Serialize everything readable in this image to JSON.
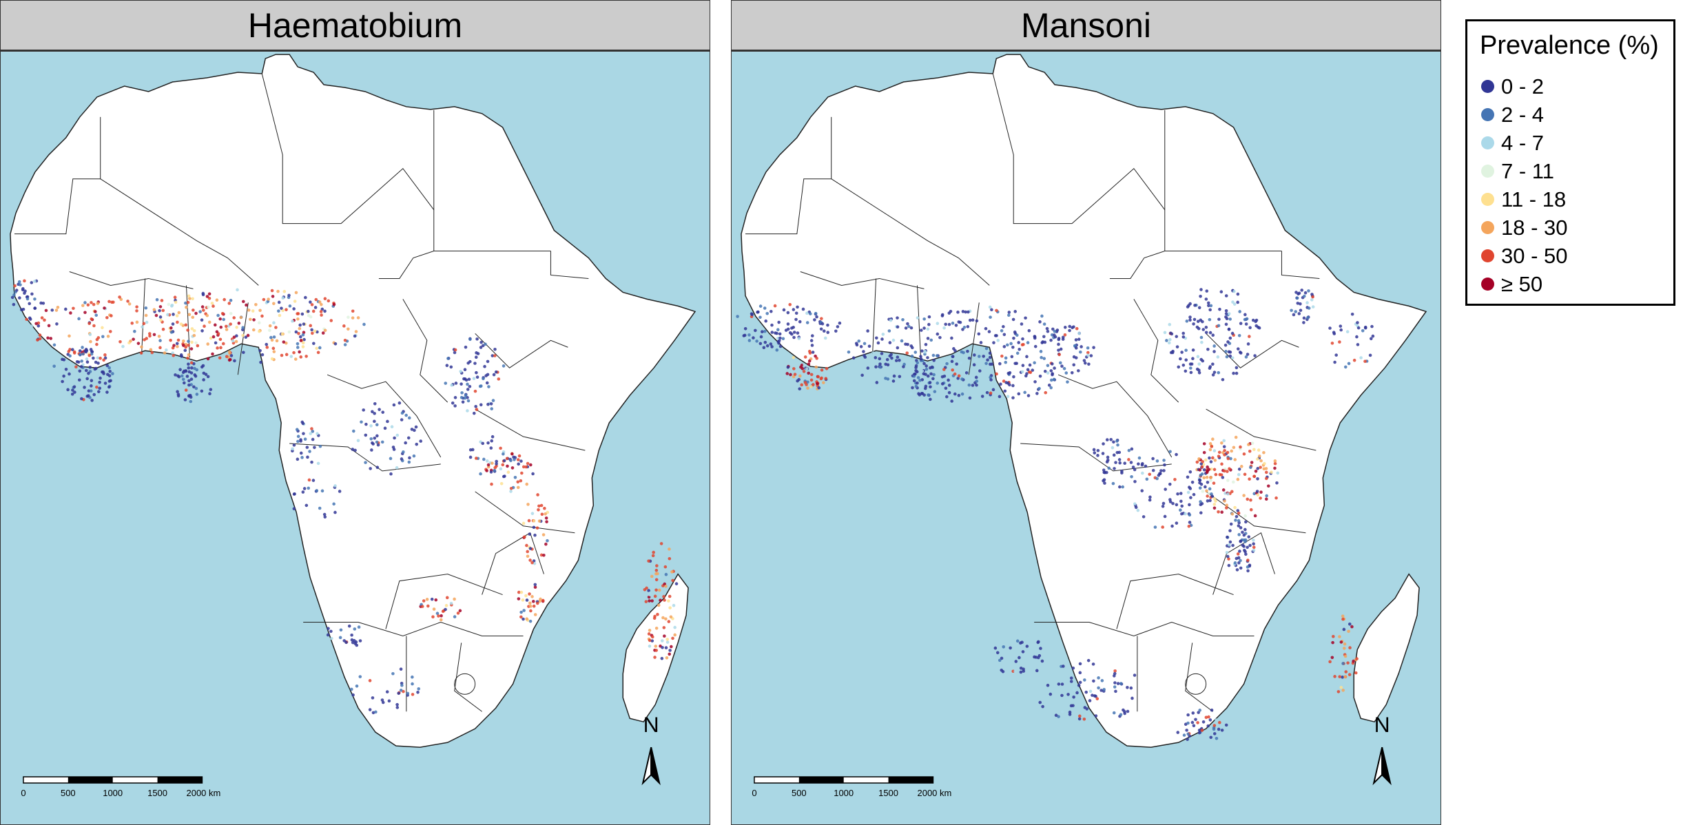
{
  "panels": [
    {
      "title": "Haematobium"
    },
    {
      "title": "Mansoni"
    }
  ],
  "legend": {
    "title": "Prevalence (%)",
    "items": [
      {
        "label": "0 - 2",
        "color": "#313695"
      },
      {
        "label": "2 - 4",
        "color": "#4575b4"
      },
      {
        "label": "4 - 7",
        "color": "#abd9e9"
      },
      {
        "label": "7 - 11",
        "color": "#e0f3e0"
      },
      {
        "label": "11 - 18",
        "color": "#fee090"
      },
      {
        "label": "18 - 30",
        "color": "#f4a55c"
      },
      {
        "label": "30 - 50",
        "color": "#e0452f"
      },
      {
        "label": "≥ 50",
        "color": "#a50026"
      }
    ]
  },
  "scalebar": {
    "ticks": [
      "0",
      "500",
      "1000",
      "1500",
      "2000 km"
    ]
  },
  "north_arrow": {
    "label": "N"
  },
  "colors": {
    "ocean": "#aad7e4",
    "land": "#ffffff",
    "border": "#222222",
    "strip": "#cccccc"
  }
}
